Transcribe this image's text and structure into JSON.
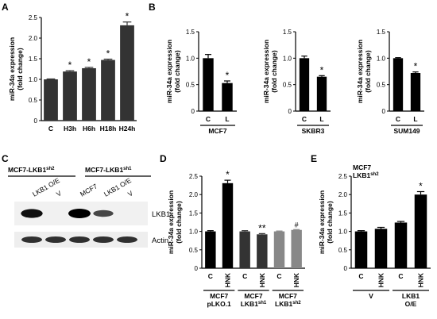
{
  "panels": {
    "A": "A",
    "B": "B",
    "C": "C",
    "D": "D",
    "E": "E"
  },
  "blot": {
    "header_left": "MCF7-LKB1",
    "header_left_sup": "sh2",
    "header_right": "MCF7-LKB1",
    "header_right_sup": "sh1",
    "lane_labels": [
      "LKB1 O/E",
      "V",
      "MCF7",
      "LKB1 O/E",
      "V"
    ],
    "row_labels": [
      "LKB1",
      "Actin"
    ],
    "row1_band_intensity": [
      0.9,
      0.0,
      1.0,
      0.55,
      0.0
    ],
    "row2_band_intensity": [
      0.75,
      0.75,
      0.75,
      0.75,
      0.75
    ]
  },
  "chart_data": [
    {
      "id": "A",
      "type": "bar",
      "ylabel": [
        "miR-34a expression",
        "(fold change)"
      ],
      "ylim": [
        0,
        2.5
      ],
      "yticks": [
        "0",
        "0.5",
        "1.0",
        "1.5",
        "2.0",
        "2.5"
      ],
      "categories": [
        "C",
        "H3h",
        "H6h",
        "H18h",
        "H24h"
      ],
      "values": [
        1.0,
        1.19,
        1.27,
        1.47,
        2.31
      ],
      "errors": [
        0.01,
        0.02,
        0.02,
        0.02,
        0.08
      ],
      "colors": [
        "#333333",
        "#333333",
        "#333333",
        "#333333",
        "#333333"
      ],
      "marks": [
        "",
        "*",
        "*",
        "*",
        "*"
      ]
    },
    {
      "id": "B1",
      "type": "bar",
      "ylabel": [
        "miR-34a expression",
        "(fold change)"
      ],
      "ylim": [
        0,
        1.5
      ],
      "yticks": [
        "0",
        "0.5",
        "1.0",
        "1.5"
      ],
      "categories": [
        "C",
        "L"
      ],
      "values": [
        1.0,
        0.53
      ],
      "errors": [
        0.07,
        0.04
      ],
      "colors": [
        "#000000",
        "#000000"
      ],
      "marks": [
        "",
        "*"
      ],
      "groups": [
        {
          "label": "MCF7",
          "from": 0,
          "to": 1
        }
      ]
    },
    {
      "id": "B2",
      "type": "bar",
      "ylabel": [
        "miR-34a expression",
        "(fold change)"
      ],
      "ylim": [
        0,
        1.5
      ],
      "yticks": [
        "0",
        "0.5",
        "1.0",
        "1.5"
      ],
      "categories": [
        "C",
        "L"
      ],
      "values": [
        1.0,
        0.65
      ],
      "errors": [
        0.04,
        0.02
      ],
      "colors": [
        "#000000",
        "#000000"
      ],
      "marks": [
        "",
        "*"
      ],
      "groups": [
        {
          "label": "SKBR3",
          "from": 0,
          "to": 1
        }
      ]
    },
    {
      "id": "B3",
      "type": "bar",
      "ylabel": [
        "miR-34a expression",
        "(fold change)"
      ],
      "ylim": [
        0,
        1.5
      ],
      "yticks": [
        "0",
        "0.5",
        "1.0",
        "1.5"
      ],
      "categories": [
        "C",
        "L"
      ],
      "values": [
        1.0,
        0.72
      ],
      "errors": [
        0.01,
        0.02
      ],
      "colors": [
        "#000000",
        "#000000"
      ],
      "marks": [
        "",
        "*"
      ],
      "groups": [
        {
          "label": "SUM149",
          "from": 0,
          "to": 1
        }
      ]
    },
    {
      "id": "D",
      "type": "bar",
      "ylabel": [
        "miR-34a expression",
        "(fold change)"
      ],
      "ylim": [
        0,
        2.5
      ],
      "yticks": [
        "0",
        "0.5",
        "1.0",
        "1.5",
        "2.0",
        "2.5"
      ],
      "categories": [
        "C",
        "HNK",
        "C",
        "HNK",
        "C",
        "HNK"
      ],
      "values": [
        1.0,
        2.31,
        1.0,
        0.92,
        1.0,
        1.04
      ],
      "errors": [
        0.02,
        0.08,
        0.02,
        0.02,
        0.01,
        0.01
      ],
      "colors": [
        "#000000",
        "#000000",
        "#333333",
        "#333333",
        "#888888",
        "#888888"
      ],
      "marks": [
        "",
        "*",
        "",
        "**",
        "",
        "#"
      ],
      "groups": [
        {
          "label": "MCF7",
          "label2": "pLKO.1",
          "sup": "",
          "from": 0,
          "to": 1
        },
        {
          "label": "MCF7",
          "label2": "LKB1",
          "sup": "sh1",
          "from": 2,
          "to": 3
        },
        {
          "label": "MCF7",
          "label2": "LKB1",
          "sup": "sh2",
          "from": 4,
          "to": 5
        }
      ]
    },
    {
      "id": "E",
      "type": "bar",
      "ylabel": [
        "miR-34a expression",
        "(fold change)"
      ],
      "ylim": [
        0,
        2.5
      ],
      "yticks": [
        "0",
        "0.5",
        "1.0",
        "1.5",
        "2.0",
        "2.5"
      ],
      "categories": [
        "C",
        "HNK",
        "C",
        "HNK"
      ],
      "values": [
        1.0,
        1.07,
        1.24,
        2.0
      ],
      "errors": [
        0.02,
        0.04,
        0.03,
        0.08
      ],
      "colors": [
        "#000000",
        "#000000",
        "#000000",
        "#000000"
      ],
      "marks": [
        "",
        "",
        "",
        "*"
      ],
      "inset_title": [
        "MCF7",
        "LKB1"
      ],
      "inset_sup": "sh2",
      "groups": [
        {
          "label": "V",
          "from": 0,
          "to": 1
        },
        {
          "label": "LKB1",
          "label2": "O/E",
          "from": 2,
          "to": 3
        }
      ]
    }
  ]
}
